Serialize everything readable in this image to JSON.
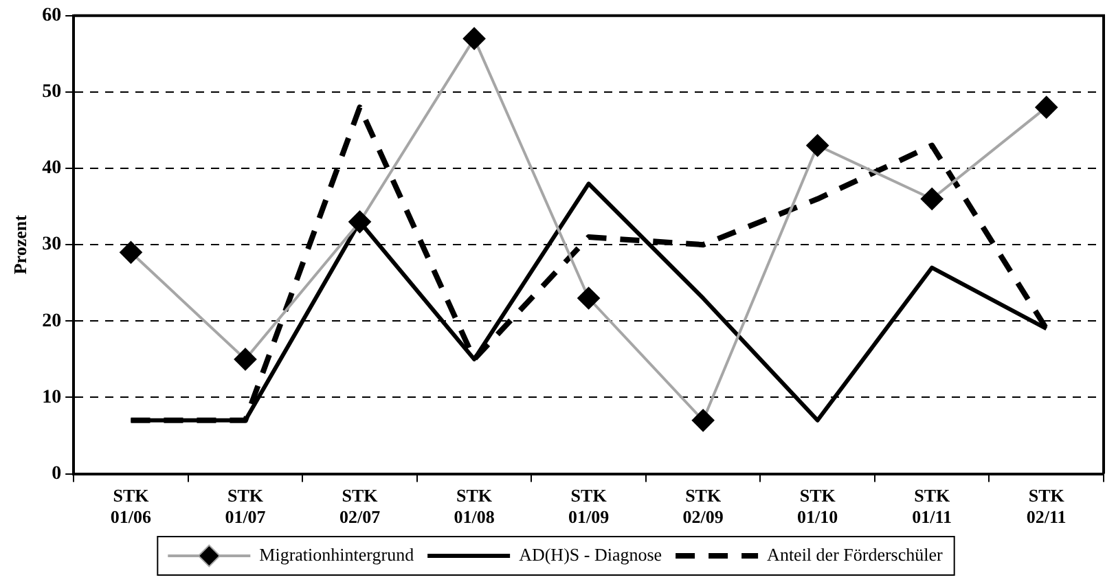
{
  "chart_data": {
    "type": "line",
    "ylabel": "Prozent",
    "categories": [
      "STK 01/06",
      "STK 01/07",
      "STK 02/07",
      "STK 01/08",
      "STK 01/09",
      "STK 02/09",
      "STK 01/10",
      "STK 01/11",
      "STK 02/11"
    ],
    "series": [
      {
        "name": "Migrationhintergrund",
        "color": "#a6a6a6",
        "marker": "diamond",
        "line_style": "solid",
        "values": [
          29,
          15,
          33,
          57,
          23,
          7,
          43,
          36,
          48
        ]
      },
      {
        "name": "AD(H)S - Diagnose",
        "color": "#000000",
        "marker": "none",
        "line_style": "solid",
        "values": [
          7,
          7,
          33,
          15,
          38,
          23,
          7,
          27,
          19
        ]
      },
      {
        "name": "Anteil der Förderschüler",
        "color": "#000000",
        "marker": "none",
        "line_style": "dashed",
        "values": [
          7,
          7,
          48,
          15,
          31,
          30,
          36,
          43,
          19
        ]
      }
    ],
    "ylim": [
      0,
      60
    ],
    "yticks": [
      0,
      10,
      20,
      30,
      40,
      50,
      60
    ],
    "grid": "y",
    "legend": "bottom"
  }
}
